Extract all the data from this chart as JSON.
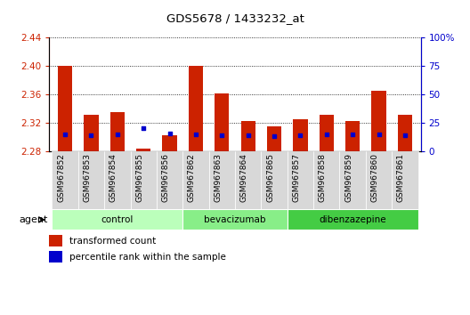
{
  "title": "GDS5678 / 1433232_at",
  "samples": [
    "GSM967852",
    "GSM967853",
    "GSM967854",
    "GSM967855",
    "GSM967856",
    "GSM967862",
    "GSM967863",
    "GSM967864",
    "GSM967865",
    "GSM967857",
    "GSM967858",
    "GSM967859",
    "GSM967860",
    "GSM967861"
  ],
  "red_values": [
    2.401,
    2.332,
    2.335,
    2.284,
    2.303,
    2.401,
    2.362,
    2.322,
    2.315,
    2.325,
    2.332,
    2.322,
    2.365,
    2.331
  ],
  "blue_values": [
    15,
    14,
    15,
    20,
    16,
    15,
    14,
    14,
    13,
    14,
    15,
    15,
    15,
    14
  ],
  "baseline": 2.28,
  "ylim_left": [
    2.28,
    2.44
  ],
  "ylim_right": [
    0,
    100
  ],
  "yticks_left": [
    2.28,
    2.32,
    2.36,
    2.4,
    2.44
  ],
  "yticks_right": [
    0,
    25,
    50,
    75,
    100
  ],
  "ytick_labels_right": [
    "0",
    "25",
    "50",
    "75",
    "100%"
  ],
  "groups": [
    {
      "name": "control",
      "indices": [
        0,
        1,
        2,
        3,
        4
      ],
      "color": "#bbffbb"
    },
    {
      "name": "bevacizumab",
      "indices": [
        5,
        6,
        7,
        8
      ],
      "color": "#88ee88"
    },
    {
      "name": "dibenzazepine",
      "indices": [
        9,
        10,
        11,
        12,
        13
      ],
      "color": "#44cc44"
    }
  ],
  "agent_label": "agent",
  "bar_width": 0.55,
  "bar_color": "#cc2200",
  "dot_color": "#0000cc",
  "legend_red": "transformed count",
  "legend_blue": "percentile rank within the sample",
  "left_axis_color": "#cc2200",
  "right_axis_color": "#0000cc",
  "xtick_bg": "#d8d8d8"
}
